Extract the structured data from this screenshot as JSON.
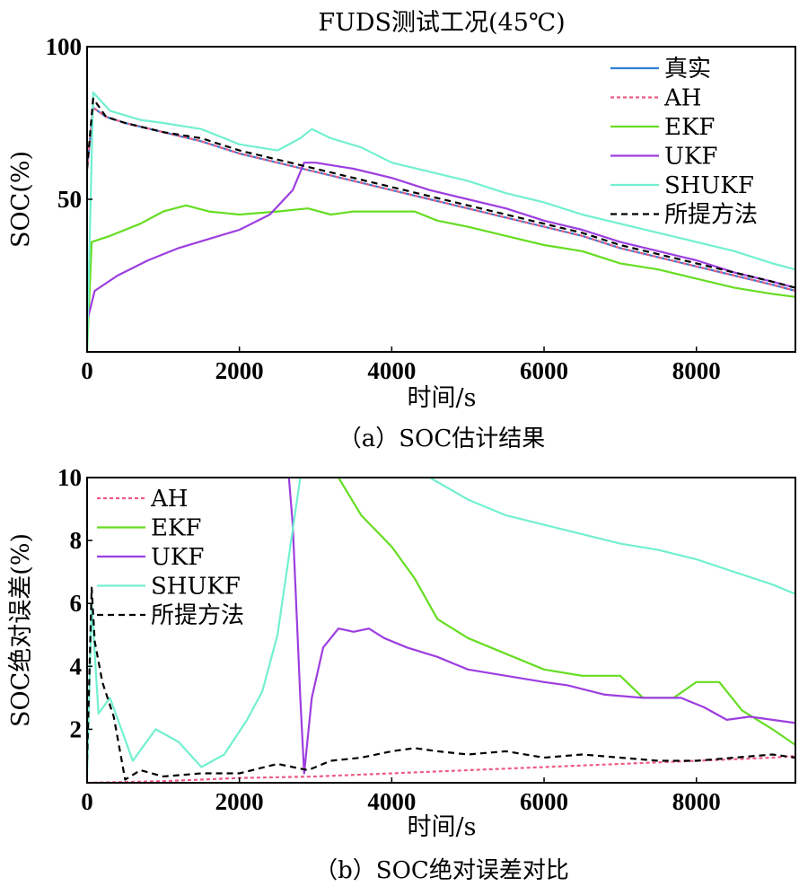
{
  "chart_data": [
    {
      "id": "a",
      "type": "line",
      "title": "FUDS测试工况(45℃)",
      "caption": "（a）SOC估计结果",
      "xlabel": "时间/s",
      "ylabel": "SOC(%)",
      "xlim": [
        0,
        9300
      ],
      "ylim": [
        0,
        100
      ],
      "xticks": [
        0,
        2000,
        4000,
        6000,
        8000
      ],
      "yticks": [
        50,
        100
      ],
      "legend_position": "top-right",
      "series": [
        {
          "name": "真实",
          "color": "#2e7fd6",
          "dash": "",
          "x": [
            0,
            80,
            250,
            500,
            1000,
            1500,
            2000,
            2500,
            3000,
            3500,
            4000,
            4500,
            5000,
            5500,
            6000,
            6500,
            7000,
            7500,
            8000,
            8500,
            9000,
            9300
          ],
          "y": [
            60,
            80,
            77,
            75,
            72,
            69,
            65,
            62,
            59,
            56,
            53,
            50,
            47,
            44,
            41,
            38,
            34,
            31,
            28,
            25,
            22,
            20
          ]
        },
        {
          "name": "AH",
          "color": "#ee5c84",
          "dash": "4,3",
          "x": [
            0,
            80,
            250,
            500,
            1000,
            1500,
            2000,
            2500,
            3000,
            3500,
            4000,
            4500,
            5000,
            5500,
            6000,
            6500,
            7000,
            7500,
            8000,
            8500,
            9000,
            9300
          ],
          "y": [
            60,
            80,
            77,
            75,
            72,
            69,
            65,
            62,
            59,
            56,
            53,
            50,
            47,
            44,
            41,
            38,
            34,
            31,
            28,
            25,
            22,
            20
          ]
        },
        {
          "name": "EKF",
          "color": "#66dd22",
          "dash": "",
          "x": [
            0,
            60,
            300,
            700,
            1000,
            1300,
            1600,
            2000,
            2500,
            2900,
            3200,
            3500,
            4000,
            4300,
            4600,
            5000,
            5500,
            6000,
            6500,
            7000,
            7500,
            8000,
            8500,
            9000,
            9300
          ],
          "y": [
            0,
            36,
            38,
            42,
            46,
            48,
            46,
            45,
            46,
            47,
            45,
            46,
            46,
            46,
            43,
            41,
            38,
            35,
            33,
            29,
            27,
            24,
            21,
            19,
            18
          ]
        },
        {
          "name": "UKF",
          "color": "#9d3ee0",
          "dash": "",
          "x": [
            0,
            100,
            400,
            800,
            1200,
            1600,
            2000,
            2400,
            2700,
            2850,
            3000,
            3500,
            4000,
            4500,
            5000,
            5500,
            6000,
            6500,
            7000,
            7500,
            8000,
            8500,
            9000,
            9300
          ],
          "y": [
            10,
            20,
            25,
            30,
            34,
            37,
            40,
            45,
            53,
            62,
            62,
            60,
            57,
            53,
            50,
            47,
            43,
            40,
            36,
            33,
            30,
            26,
            23,
            21
          ]
        },
        {
          "name": "SHUKF",
          "color": "#72f0d0",
          "dash": "",
          "x": [
            0,
            80,
            300,
            700,
            1000,
            1500,
            2000,
            2500,
            2800,
            2950,
            3200,
            3600,
            4000,
            4500,
            5000,
            5500,
            6000,
            6500,
            7000,
            7500,
            8000,
            8500,
            9000,
            9300
          ],
          "y": [
            0,
            85,
            79,
            76,
            75,
            73,
            68,
            66,
            70,
            73,
            70,
            67,
            62,
            59,
            56,
            52,
            49,
            45,
            42,
            39,
            36,
            33,
            29,
            27
          ]
        },
        {
          "name": "所提方法",
          "color": "#000000",
          "dash": "7,5",
          "x": [
            0,
            80,
            250,
            500,
            1000,
            1500,
            2000,
            2500,
            3000,
            3500,
            4000,
            4500,
            5000,
            5500,
            6000,
            6500,
            7000,
            7500,
            8000,
            8500,
            9000,
            9300
          ],
          "y": [
            60,
            83,
            77,
            75,
            72,
            70,
            66,
            63,
            60,
            57,
            54,
            51,
            48,
            45,
            42,
            39,
            35,
            32,
            29,
            26,
            23,
            21
          ]
        }
      ]
    },
    {
      "id": "b",
      "type": "line",
      "caption": "（b）SOC绝对误差对比",
      "xlabel": "时间/s",
      "ylabel": "SOC绝对误差(%)",
      "xlim": [
        0,
        9300
      ],
      "ylim": [
        0.3,
        10
      ],
      "xticks": [
        0,
        2000,
        4000,
        6000,
        8000
      ],
      "yticks": [
        2,
        4,
        6,
        8,
        10
      ],
      "legend_position": "top-left",
      "series": [
        {
          "name": "AH",
          "color": "#ee5c84",
          "dash": "4,3",
          "x": [
            0,
            1000,
            2000,
            3000,
            4000,
            5000,
            6000,
            7000,
            8000,
            9000,
            9300
          ],
          "y": [
            0.3,
            0.35,
            0.45,
            0.5,
            0.6,
            0.7,
            0.8,
            0.9,
            1.0,
            1.1,
            1.15
          ]
        },
        {
          "name": "EKF",
          "color": "#66dd22",
          "dash": "",
          "x": [
            3300,
            3600,
            4000,
            4300,
            4600,
            5000,
            5500,
            6000,
            6500,
            7000,
            7300,
            7700,
            8000,
            8300,
            8600,
            9000,
            9300
          ],
          "y": [
            10,
            8.8,
            7.8,
            6.8,
            5.5,
            4.9,
            4.4,
            3.9,
            3.7,
            3.7,
            3.0,
            3.0,
            3.5,
            3.5,
            2.6,
            2.0,
            1.5
          ]
        },
        {
          "name": "UKF",
          "color": "#9d3ee0",
          "dash": "",
          "x": [
            2650,
            2700,
            2800,
            2850,
            2950,
            3100,
            3300,
            3500,
            3700,
            3900,
            4200,
            4600,
            5000,
            5500,
            6000,
            6300,
            6800,
            7300,
            7800,
            8100,
            8400,
            8700,
            9000,
            9300
          ],
          "y": [
            10,
            8.5,
            3.0,
            0.6,
            3.0,
            4.6,
            5.2,
            5.1,
            5.2,
            4.9,
            4.6,
            4.3,
            3.9,
            3.7,
            3.5,
            3.4,
            3.1,
            3.0,
            3.0,
            2.7,
            2.3,
            2.4,
            2.3,
            2.2
          ]
        },
        {
          "name": "SHUKF",
          "color": "#72f0d0",
          "dash": "",
          "x": [
            0,
            60,
            150,
            300,
            600,
            900,
            1200,
            1500,
            1800,
            2100,
            2300,
            2500,
            2650,
            2800,
            2900,
            4500,
            5000,
            5500,
            6000,
            6500,
            7000,
            7500,
            8000,
            8500,
            9000,
            9300
          ],
          "y": [
            0.5,
            6,
            2.5,
            3.0,
            1.0,
            2.0,
            1.6,
            0.8,
            1.2,
            2.3,
            3.2,
            5.0,
            7.5,
            10,
            10,
            10,
            9.3,
            8.8,
            8.5,
            8.2,
            7.9,
            7.7,
            7.4,
            7.0,
            6.6,
            6.3
          ]
        },
        {
          "name": "所提方法",
          "color": "#000000",
          "dash": "7,5",
          "x": [
            0,
            60,
            100,
            200,
            350,
            500,
            700,
            1000,
            1500,
            2000,
            2500,
            2900,
            3200,
            3600,
            4000,
            4300,
            4600,
            5000,
            5500,
            6000,
            6500,
            7000,
            7500,
            8000,
            8500,
            9000,
            9300
          ],
          "y": [
            1.0,
            6.5,
            4.8,
            3.5,
            2.4,
            0.4,
            0.7,
            0.5,
            0.6,
            0.6,
            0.9,
            0.7,
            1.0,
            1.1,
            1.3,
            1.4,
            1.3,
            1.2,
            1.3,
            1.1,
            1.2,
            1.1,
            1.0,
            1.0,
            1.1,
            1.2,
            1.1
          ]
        }
      ]
    }
  ]
}
